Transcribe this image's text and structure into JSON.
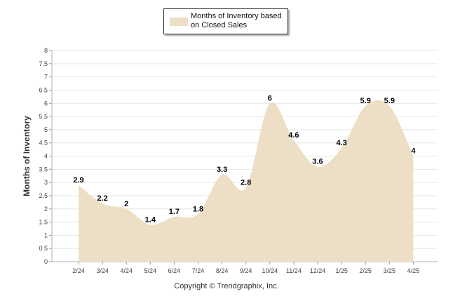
{
  "chart_data": {
    "type": "area",
    "ylabel": "Months of Inventory",
    "xlabel": "",
    "categories": [
      "2/24",
      "3/24",
      "4/24",
      "5/24",
      "6/24",
      "7/24",
      "8/24",
      "9/24",
      "10/24",
      "11/24",
      "12/24",
      "1/25",
      "2/25",
      "3/25",
      "4/25"
    ],
    "series": [
      {
        "name": "Months of Inventory based on Closed Sales",
        "values": [
          2.9,
          2.2,
          2,
          1.4,
          1.7,
          1.8,
          3.3,
          2.8,
          6,
          4.6,
          3.6,
          4.3,
          5.9,
          5.9,
          4
        ]
      }
    ],
    "data_labels": [
      "2.9",
      "2.2",
      "2",
      "1.4",
      "1.7",
      "1.8",
      "3.3",
      "2.8",
      "6",
      "4.6",
      "3.6",
      "4.3",
      "5.9",
      "5.9",
      "4"
    ],
    "ylim": [
      0,
      8
    ],
    "yticks": [
      0,
      0.5,
      1,
      1.5,
      2,
      2.5,
      3,
      3.5,
      4,
      4.5,
      5,
      5.5,
      6,
      6.5,
      7,
      7.5,
      8
    ],
    "grid": true,
    "legend_position": "top-center",
    "fill_color": "#eddfc5",
    "grid_color": "#e6e6e6"
  },
  "legend": {
    "line1": "Months of Inventory based",
    "line2": "on Closed Sales"
  },
  "footer": {
    "copyright": "Copyright © Trendgraphix, Inc."
  }
}
